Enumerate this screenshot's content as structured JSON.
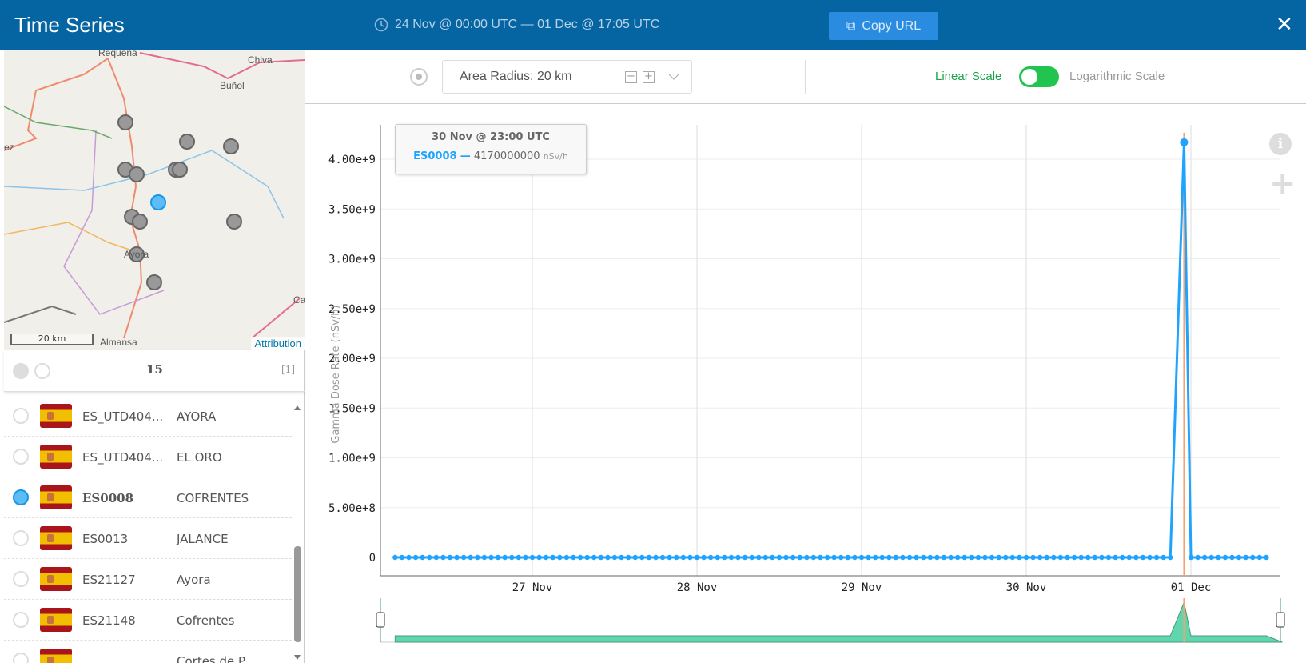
{
  "header": {
    "title": "Time Series",
    "date_range": "24 Nov @ 00:00 UTC  —  01 Dec @ 17:05 UTC",
    "copy_url": "Copy URL",
    "close": "✕"
  },
  "map": {
    "labels": [
      "Requena",
      "Chiva",
      "Buñol",
      "ez",
      "Ayora",
      "Almansa",
      "Ca"
    ],
    "scale": "20 km",
    "attribution": "Attribution"
  },
  "station_list": {
    "count": "15",
    "page": "[1]",
    "rows": [
      {
        "id": "ES_UTD404...",
        "name": "AYORA",
        "selected": false
      },
      {
        "id": "ES_UTD404...",
        "name": "EL ORO",
        "selected": false
      },
      {
        "id": "ES0008",
        "name": "COFRENTES",
        "selected": true
      },
      {
        "id": "ES0013",
        "name": "JALANCE",
        "selected": false
      },
      {
        "id": "ES21127",
        "name": "Ayora",
        "selected": false
      },
      {
        "id": "ES21148",
        "name": "Cofrentes",
        "selected": false
      },
      {
        "id": "",
        "name": "Cortes de P...",
        "selected": false
      }
    ]
  },
  "toolbar": {
    "area_radius": "Area Radius: 20 km",
    "minus": "−",
    "plus": "+",
    "linear": "Linear Scale",
    "log": "Logarithmic Scale",
    "linear_active": true
  },
  "tooltip": {
    "time": "30 Nov @ 23:00 UTC",
    "station": "ES0008",
    "dash": "—",
    "value": "4170000000",
    "unit": "nSv/h"
  },
  "colors": {
    "header": "#0565a3",
    "series": "#1ea4ff",
    "cursor": "#f5a26e",
    "navigator": "#5fd6ac"
  },
  "chart_data": {
    "type": "line",
    "title": "",
    "ylabel": "Gamma Dose Rate (nSv/h)",
    "xlabel": "",
    "ylim": [
      0,
      4300000000
    ],
    "yticks": [
      "0",
      "5.00e+8",
      "1.00e+9",
      "1.50e+9",
      "2.00e+9",
      "2.50e+9",
      "3.00e+9",
      "3.50e+9",
      "4.00e+9"
    ],
    "xticks": [
      {
        "label": "27 Nov",
        "hour": 24
      },
      {
        "label": "28 Nov",
        "hour": 48
      },
      {
        "label": "29 Nov",
        "hour": 72
      },
      {
        "label": "30 Nov",
        "hour": 96
      },
      {
        "label": "01 Dec",
        "hour": 120
      }
    ],
    "x_origin": "26 Nov 00:00 UTC",
    "x_unit": "hours",
    "x_start_hour": 4,
    "step_hours": 1,
    "series": [
      {
        "name": "ES0008",
        "values": [
          0,
          0,
          0,
          0,
          0,
          0,
          0,
          0,
          0,
          0,
          0,
          0,
          0,
          0,
          0,
          0,
          0,
          0,
          0,
          0,
          0,
          0,
          0,
          0,
          0,
          0,
          0,
          0,
          0,
          0,
          0,
          0,
          0,
          0,
          0,
          0,
          0,
          0,
          0,
          0,
          0,
          0,
          0,
          0,
          0,
          0,
          0,
          0,
          0,
          0,
          0,
          0,
          0,
          0,
          0,
          0,
          0,
          0,
          0,
          0,
          0,
          0,
          0,
          0,
          0,
          0,
          0,
          0,
          0,
          0,
          0,
          0,
          0,
          0,
          0,
          0,
          0,
          0,
          0,
          0,
          0,
          0,
          0,
          0,
          0,
          0,
          0,
          0,
          0,
          0,
          0,
          0,
          0,
          0,
          0,
          0,
          0,
          0,
          0,
          0,
          0,
          0,
          0,
          0,
          0,
          0,
          0,
          0,
          0,
          0,
          0,
          0,
          0,
          0,
          null,
          4170000000,
          0,
          0,
          0,
          0,
          0,
          0,
          0,
          0,
          0,
          0,
          0,
          0
        ]
      }
    ],
    "cursor_hour": 119,
    "grid": true
  }
}
